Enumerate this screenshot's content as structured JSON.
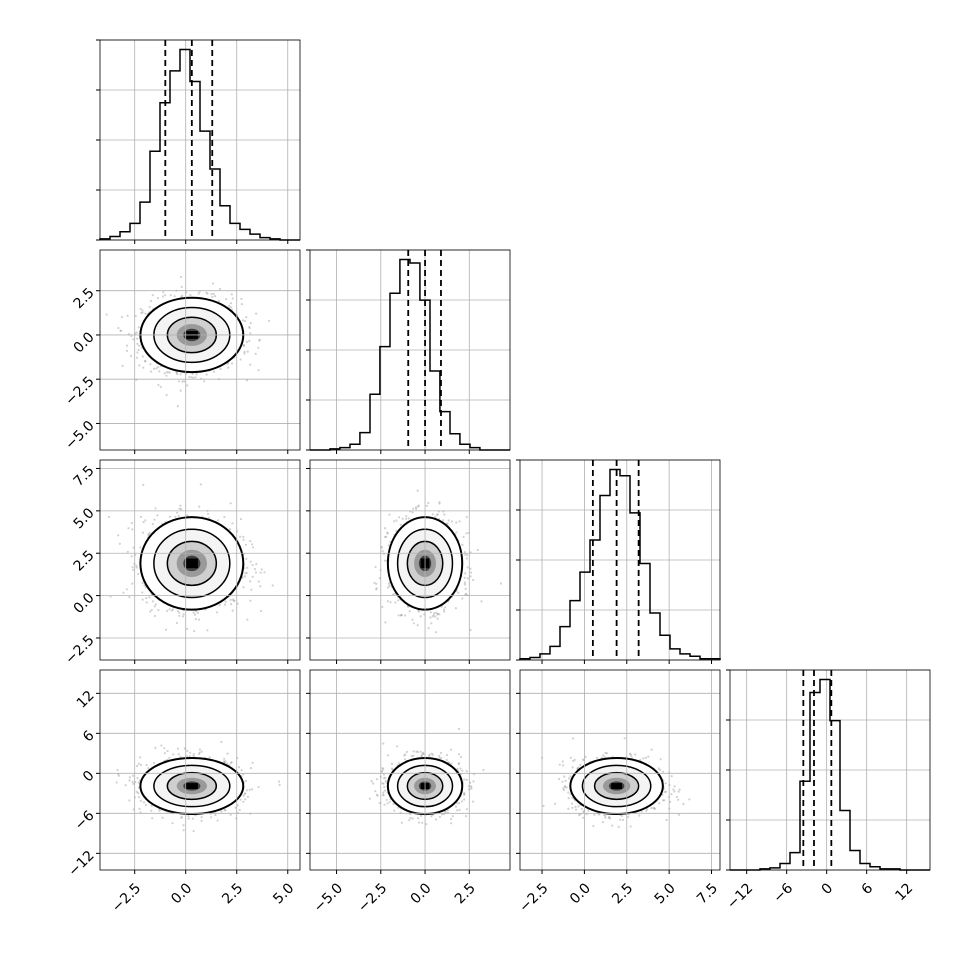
{
  "chart_data": {
    "type": "corner",
    "grid": true,
    "parameters": [
      {
        "range": [
          -4.2,
          5.6
        ],
        "ticks": [
          -2.5,
          0.0,
          2.5,
          5.0
        ],
        "tick_labels": [
          "−2.5",
          "0.0",
          "2.5",
          "5.0"
        ],
        "center": 0.3,
        "sigma": 1.2,
        "quantiles": [
          -1.0,
          0.3,
          1.3
        ],
        "hist": {
          "edges": [
            -4.2,
            -3.71,
            -3.22,
            -2.73,
            -2.24,
            -1.75,
            -1.26,
            -0.77,
            -0.28,
            0.21,
            0.7,
            1.19,
            1.68,
            2.17,
            2.66,
            3.15,
            3.64,
            4.13,
            4.62,
            5.11,
            5.6
          ],
          "counts": [
            1,
            3,
            7,
            14,
            32,
            75,
            116,
            143,
            161,
            134,
            92,
            60,
            29,
            14,
            9,
            5,
            2,
            1,
            0,
            0
          ]
        }
      },
      {
        "range": [
          -6.5,
          4.8
        ],
        "ticks": [
          -5.0,
          -2.5,
          0.0,
          2.5
        ],
        "tick_labels": [
          "−5.0",
          "−2.5",
          "0.0",
          "2.5"
        ],
        "center": 0.0,
        "sigma": 1.0,
        "quantiles": [
          -0.95,
          0.0,
          0.9
        ],
        "hist": {
          "edges": [
            -6.5,
            -5.94,
            -5.37,
            -4.81,
            -4.24,
            -3.68,
            -3.11,
            -2.55,
            -1.98,
            -1.42,
            -0.85,
            -0.29,
            0.28,
            0.84,
            1.41,
            1.97,
            2.54,
            3.1,
            3.67,
            4.23,
            4.8
          ],
          "counts": [
            0,
            0,
            1,
            2,
            5,
            15,
            48,
            89,
            135,
            164,
            161,
            129,
            68,
            33,
            14,
            5,
            2,
            0,
            0,
            0
          ]
        }
      },
      {
        "range": [
          -3.8,
          8.0
        ],
        "ticks": [
          -2.5,
          0.0,
          2.5,
          5.0,
          7.5
        ],
        "tick_labels": [
          "−2.5",
          "0.0",
          "2.5",
          "5.0",
          "7.5"
        ],
        "center": 1.9,
        "sigma": 1.3,
        "quantiles": [
          0.5,
          1.9,
          3.2
        ],
        "hist": {
          "edges": [
            -3.8,
            -3.21,
            -2.62,
            -2.03,
            -1.44,
            -0.85,
            -0.26,
            0.33,
            0.92,
            1.51,
            2.1,
            2.69,
            3.28,
            3.87,
            4.46,
            5.05,
            5.64,
            6.23,
            6.82,
            7.41,
            8.0
          ],
          "counts": [
            1,
            2,
            5,
            11,
            27,
            48,
            71,
            97,
            133,
            154,
            149,
            119,
            78,
            38,
            20,
            9,
            5,
            3,
            1,
            1
          ]
        }
      },
      {
        "range": [
          -14.5,
          15.5
        ],
        "ticks": [
          -12,
          -6,
          0,
          6,
          12
        ],
        "tick_labels": [
          "−12",
          "−6",
          "0",
          "6",
          "12"
        ],
        "center": -1.9,
        "sigma": 2.0,
        "quantiles": [
          -3.5,
          -1.9,
          0.7
        ],
        "hist": {
          "edges": [
            -14.5,
            -13.0,
            -11.5,
            -10.0,
            -8.5,
            -7.0,
            -5.5,
            -4.0,
            -2.5,
            -1.0,
            0.5,
            2.0,
            3.5,
            5.0,
            6.5,
            8.0,
            9.5,
            11.0,
            12.5,
            14.0,
            15.5
          ],
          "counts": [
            0,
            0,
            0,
            1,
            2,
            6,
            16,
            82,
            164,
            176,
            138,
            55,
            18,
            6,
            3,
            1,
            1,
            0,
            0,
            0
          ]
        }
      }
    ]
  }
}
